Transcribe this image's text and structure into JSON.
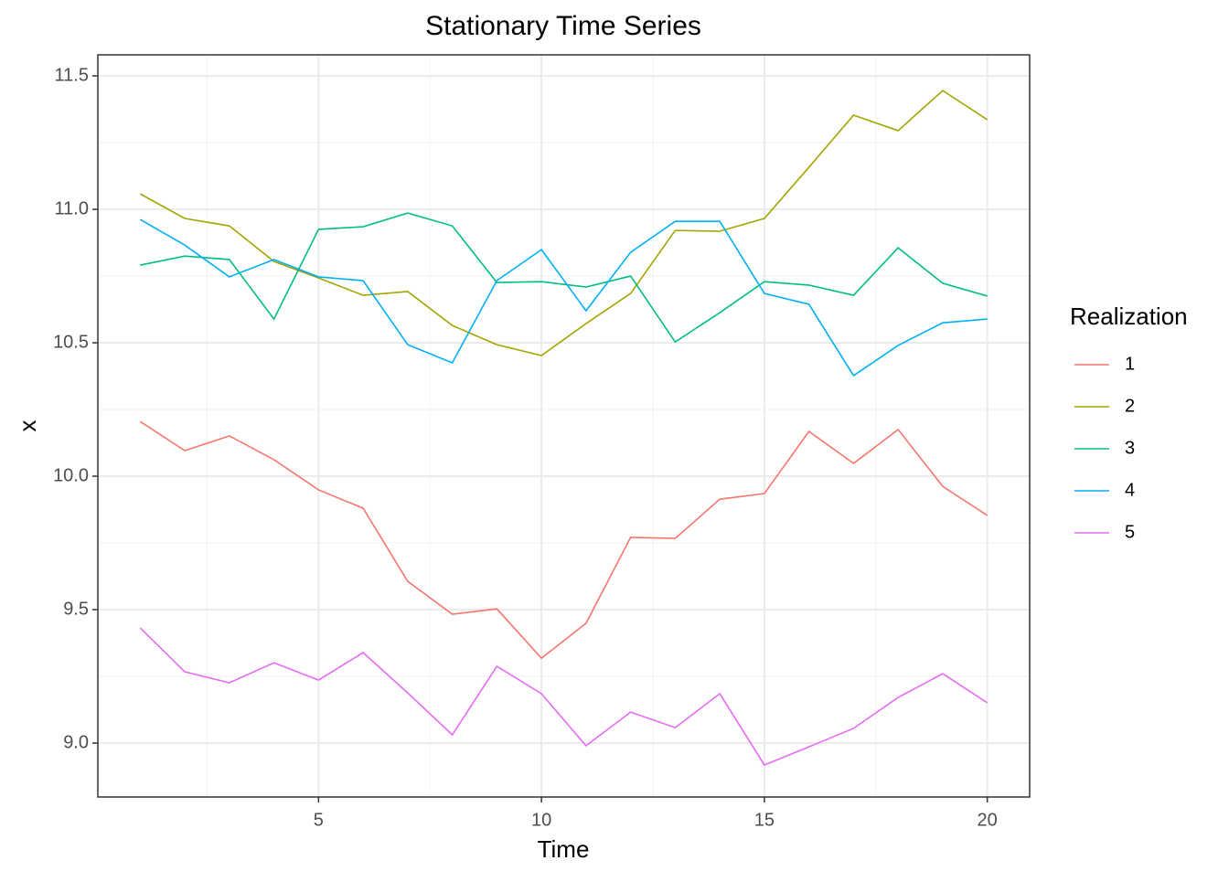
{
  "chart_data": {
    "type": "line",
    "title": "Stationary Time Series",
    "x_label": "Time",
    "y_label": "x",
    "legend_title": "Realization",
    "legend_position": "right",
    "grid": true,
    "x": [
      1,
      2,
      3,
      4,
      5,
      6,
      7,
      8,
      9,
      10,
      11,
      12,
      13,
      14,
      15,
      16,
      17,
      18,
      19,
      20
    ],
    "xlim": [
      0.05,
      20.95
    ],
    "xticks": [
      5,
      10,
      15,
      20
    ],
    "ylim": [
      8.798,
      11.579
    ],
    "yticks": [
      9.0,
      9.5,
      10.0,
      10.5,
      11.0,
      11.5
    ],
    "series": [
      {
        "name": "1",
        "color": "#F8766D",
        "values": [
          10.205,
          10.096,
          10.151,
          10.062,
          9.949,
          9.88,
          9.606,
          9.483,
          9.503,
          9.318,
          9.449,
          9.771,
          9.767,
          9.914,
          9.935,
          10.168,
          10.048,
          10.175,
          9.962,
          9.853
        ]
      },
      {
        "name": "2",
        "color": "#A3A500",
        "values": [
          11.058,
          10.966,
          10.938,
          10.805,
          10.743,
          10.678,
          10.692,
          10.565,
          10.493,
          10.452,
          10.572,
          10.685,
          10.921,
          10.918,
          10.966,
          11.158,
          11.353,
          11.295,
          11.445,
          11.336
        ]
      },
      {
        "name": "3",
        "color": "#00BF7D",
        "values": [
          10.791,
          10.825,
          10.812,
          10.589,
          10.925,
          10.935,
          10.986,
          10.938,
          10.726,
          10.729,
          10.709,
          10.75,
          10.503,
          10.613,
          10.729,
          10.716,
          10.678,
          10.856,
          10.723,
          10.675
        ]
      },
      {
        "name": "4",
        "color": "#00B0F6",
        "values": [
          10.962,
          10.866,
          10.747,
          10.812,
          10.747,
          10.733,
          10.493,
          10.425,
          10.733,
          10.849,
          10.62,
          10.839,
          10.955,
          10.955,
          10.685,
          10.644,
          10.377,
          10.49,
          10.575,
          10.589
        ]
      },
      {
        "name": "5",
        "color": "#E76BF3",
        "values": [
          9.432,
          9.267,
          9.226,
          9.301,
          9.236,
          9.339,
          9.188,
          9.031,
          9.288,
          9.185,
          8.99,
          9.116,
          9.058,
          9.185,
          8.918,
          8.986,
          9.055,
          9.171,
          9.26,
          9.151
        ]
      }
    ]
  }
}
